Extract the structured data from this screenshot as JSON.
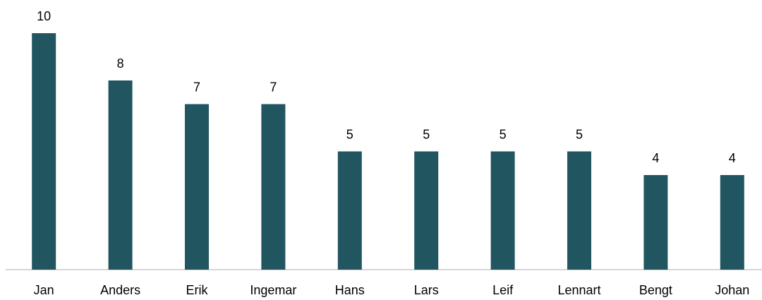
{
  "chart_data": {
    "type": "bar",
    "categories": [
      "Jan",
      "Anders",
      "Erik",
      "Ingemar",
      "Hans",
      "Lars",
      "Leif",
      "Lennart",
      "Bengt",
      "Johan"
    ],
    "values": [
      10,
      8,
      7,
      7,
      5,
      5,
      5,
      5,
      4,
      4
    ],
    "color": "#215660",
    "ylim": [
      0,
      10
    ]
  }
}
